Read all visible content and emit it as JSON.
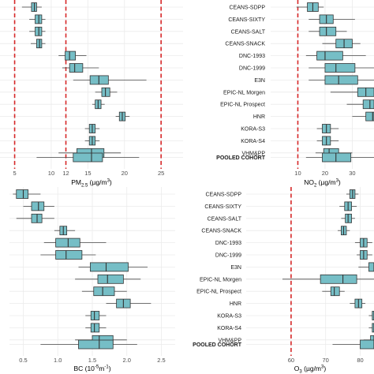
{
  "chart_data": [
    {
      "type": "box",
      "panel": "top-left",
      "xlabel": "PM2.5 (µg/m³)",
      "xlabel_main": "PM",
      "xlabel_sub": "2.5",
      "xlabel_unit": " (µg/m",
      "xlabel_sup": "3",
      "xlabel_end": ")",
      "xlim": [
        3,
        28
      ],
      "xticks": [
        5,
        10,
        12,
        15,
        20,
        25
      ],
      "reference_lines": [
        5,
        12,
        25
      ],
      "reference_color": "#d62728",
      "categories": [
        "CEANS-SDPP",
        "CEANS-SIXTY",
        "CEANS-SALT",
        "CEANS-SNACK",
        "DNC-1993",
        "DNC-1999",
        "E3N",
        "EPIC-NL Morgen",
        "EPIC-NL Prospect",
        "HNR",
        "KORA-S3",
        "KORA-S4",
        "VHM&PP",
        "POOLED COHORT"
      ],
      "boxes": [
        {
          "min": 6.0,
          "q1": 7.3,
          "median": 7.7,
          "q3": 8.0,
          "max": 8.7
        },
        {
          "min": 7.0,
          "q1": 7.8,
          "median": 8.3,
          "q3": 8.7,
          "max": 9.2
        },
        {
          "min": 7.0,
          "q1": 7.8,
          "median": 8.3,
          "q3": 8.7,
          "max": 9.2
        },
        {
          "min": 7.2,
          "q1": 8.0,
          "median": 8.4,
          "q3": 8.7,
          "max": 9.2
        },
        {
          "min": 11.0,
          "q1": 11.9,
          "median": 12.5,
          "q3": 13.3,
          "max": 14.8
        },
        {
          "min": 11.5,
          "q1": 12.5,
          "median": 13.2,
          "q3": 14.3,
          "max": 16.5
        },
        {
          "min": 13.0,
          "q1": 15.3,
          "median": 16.5,
          "q3": 17.8,
          "max": 23.0
        },
        {
          "min": 16.0,
          "q1": 16.9,
          "median": 17.4,
          "q3": 18.0,
          "max": 19.0
        },
        {
          "min": 15.6,
          "q1": 16.0,
          "median": 16.4,
          "q3": 16.8,
          "max": 17.3
        },
        {
          "min": 18.8,
          "q1": 19.3,
          "median": 19.7,
          "q3": 20.1,
          "max": 20.7
        },
        {
          "min": 14.6,
          "q1": 15.2,
          "median": 15.6,
          "q3": 16.0,
          "max": 16.6
        },
        {
          "min": 14.6,
          "q1": 15.2,
          "median": 15.6,
          "q3": 16.0,
          "max": 16.6
        },
        {
          "min": 11.0,
          "q1": 13.5,
          "median": 15.5,
          "q3": 17.2,
          "max": 19.5
        },
        {
          "min": 8.0,
          "q1": 13.0,
          "median": 15.5,
          "q3": 17.0,
          "max": 22.0
        }
      ]
    },
    {
      "type": "box",
      "panel": "top-right",
      "xlabel": "NO2 (µg/m³)",
      "xlabel_main": "NO",
      "xlabel_sub": "2",
      "xlabel_unit": " (µg/m",
      "xlabel_sup": "3",
      "xlabel_end": ")",
      "xlim": [
        0,
        38
      ],
      "xticks": [
        10,
        20,
        30
      ],
      "reference_lines": [
        10
      ],
      "reference_color": "#d62728",
      "categories": [
        "CEANS-SDPP",
        "CEANS-SIXTY",
        "CEANS-SALT",
        "CEANS-SNACK",
        "DNC-1993",
        "DNC-1999",
        "E3N",
        "EPIC-NL Morgen",
        "EPIC-NL Prospect",
        "HNR",
        "KORA-S3",
        "KORA-S4",
        "VHM&PP",
        "POOLED COHORT"
      ],
      "boxes": [
        {
          "min": 9.5,
          "q1": 13.5,
          "median": 15.5,
          "q3": 17.5,
          "max": 19.5
        },
        {
          "min": 14.0,
          "q1": 18.0,
          "median": 20.5,
          "q3": 23.0,
          "max": 31.0
        },
        {
          "min": 14.0,
          "q1": 18.0,
          "median": 20.5,
          "q3": 24.0,
          "max": 28.0
        },
        {
          "min": 19.0,
          "q1": 24.0,
          "median": 27.0,
          "q3": 30.0,
          "max": 33.0
        },
        {
          "min": 13.0,
          "q1": 17.0,
          "median": 20.0,
          "q3": 26.5,
          "max": 35.0
        },
        {
          "min": 14.0,
          "q1": 20.0,
          "median": 24.0,
          "q3": 31.0,
          "max": 38.0
        },
        {
          "min": 14.0,
          "q1": 20.0,
          "median": 25.0,
          "q3": 32.0,
          "max": 38.0
        },
        {
          "min": 22.0,
          "q1": 32.0,
          "median": 35.0,
          "q3": 38.0,
          "max": 38.0
        },
        {
          "min": 28.0,
          "q1": 34.0,
          "median": 36.5,
          "q3": 38.0,
          "max": 38.0
        },
        {
          "min": 30.0,
          "q1": 35.0,
          "median": 37.5,
          "q3": 38.0,
          "max": 38.0
        },
        {
          "min": 17.0,
          "q1": 19.0,
          "median": 20.5,
          "q3": 22.0,
          "max": 25.0
        },
        {
          "min": 17.0,
          "q1": 19.0,
          "median": 20.5,
          "q3": 22.0,
          "max": 25.0
        },
        {
          "min": 16.5,
          "q1": 19.5,
          "median": 21.5,
          "q3": 25.0,
          "max": 30.0
        },
        {
          "min": 13.0,
          "q1": 19.0,
          "median": 24.0,
          "q3": 29.5,
          "max": 38.0
        }
      ]
    },
    {
      "type": "box",
      "panel": "bottom-left",
      "xlabel": "BC (10⁻⁵m⁻¹)",
      "xlabel_main": "BC (10",
      "xlabel_sup": "-5",
      "xlabel_unit": "m",
      "xlabel_sup2": "-1",
      "xlabel_end": ")",
      "xlim": [
        0.3,
        2.7
      ],
      "xticks": [
        0.5,
        1.0,
        1.5,
        2.0,
        2.5
      ],
      "xtick_labels": [
        "0.5",
        "1.0",
        "1.5",
        "2.0",
        "2.5"
      ],
      "reference_lines": [],
      "categories": [
        "CEANS-SDPP",
        "CEANS-SIXTY",
        "CEANS-SALT",
        "CEANS-SNACK",
        "DNC-1993",
        "DNC-1999",
        "E3N",
        "EPIC-NL Morgen",
        "EPIC-NL Prospect",
        "HNR",
        "KORA-S3",
        "KORA-S4",
        "VHM&PP",
        "POOLED COHORT"
      ],
      "boxes": [
        {
          "min": 0.35,
          "q1": 0.4,
          "median": 0.5,
          "q3": 0.57,
          "max": 0.75
        },
        {
          "min": 0.5,
          "q1": 0.62,
          "median": 0.72,
          "q3": 0.8,
          "max": 0.95
        },
        {
          "min": 0.4,
          "q1": 0.62,
          "median": 0.7,
          "q3": 0.77,
          "max": 0.95
        },
        {
          "min": 0.95,
          "q1": 1.03,
          "median": 1.08,
          "q3": 1.13,
          "max": 1.25
        },
        {
          "min": 0.8,
          "q1": 0.97,
          "median": 1.15,
          "q3": 1.32,
          "max": 1.7
        },
        {
          "min": 0.75,
          "q1": 0.97,
          "median": 1.12,
          "q3": 1.35,
          "max": 1.55
        },
        {
          "min": 1.3,
          "q1": 1.47,
          "median": 1.7,
          "q3": 2.02,
          "max": 2.3
        },
        {
          "min": 1.25,
          "q1": 1.58,
          "median": 1.72,
          "q3": 1.95,
          "max": 2.2
        },
        {
          "min": 1.35,
          "q1": 1.52,
          "median": 1.65,
          "q3": 1.82,
          "max": 2.0
        },
        {
          "min": 1.7,
          "q1": 1.85,
          "median": 1.95,
          "q3": 2.05,
          "max": 2.35
        },
        {
          "min": 1.4,
          "q1": 1.48,
          "median": 1.53,
          "q3": 1.6,
          "max": 1.7
        },
        {
          "min": 1.4,
          "q1": 1.48,
          "median": 1.53,
          "q3": 1.6,
          "max": 1.7
        },
        {
          "min": 1.25,
          "q1": 1.5,
          "median": 1.6,
          "q3": 1.8,
          "max": 2.0
        },
        {
          "min": 0.75,
          "q1": 1.3,
          "median": 1.6,
          "q3": 1.8,
          "max": 2.15
        }
      ]
    },
    {
      "type": "box",
      "panel": "bottom-right",
      "xlabel": "O3 (µg/m³)",
      "xlabel_main": "O",
      "xlabel_sub": "3",
      "xlabel_unit": " (µg/m",
      "xlabel_sup": "3",
      "xlabel_end": ")",
      "xlim": [
        47,
        84
      ],
      "xticks": [
        60,
        70,
        80
      ],
      "reference_lines": [
        60
      ],
      "reference_color": "#d62728",
      "categories": [
        "CEANS-SDPP",
        "CEANS-SIXTY",
        "CEANS-SALT",
        "CEANS-SNACK",
        "DNC-1993",
        "DNC-1999",
        "E3N",
        "EPIC-NL Morgen",
        "EPIC-NL Prospect",
        "HNR",
        "KORA-S3",
        "KORA-S4",
        "VHM&PP",
        "POOLED COHORT"
      ],
      "boxes": [
        {
          "min": 76.0,
          "q1": 77.0,
          "median": 77.8,
          "q3": 78.5,
          "max": 79.5
        },
        {
          "min": 74.0,
          "q1": 75.5,
          "median": 76.5,
          "q3": 77.5,
          "max": 79.0
        },
        {
          "min": 74.5,
          "q1": 75.7,
          "median": 76.5,
          "q3": 77.5,
          "max": 78.5
        },
        {
          "min": 73.5,
          "q1": 74.5,
          "median": 75.2,
          "q3": 76.0,
          "max": 77.0
        },
        {
          "min": 78.5,
          "q1": 80.0,
          "median": 81.0,
          "q3": 82.0,
          "max": 83.5
        },
        {
          "min": 79.0,
          "q1": 80.0,
          "median": 81.0,
          "q3": 82.0,
          "max": 83.5
        },
        {
          "min": 79.5,
          "q1": 82.5,
          "median": 84.0,
          "q3": 84.0,
          "max": 84.0
        },
        {
          "min": 57.5,
          "q1": 68.5,
          "median": 75.0,
          "q3": 79.0,
          "max": 84.0
        },
        {
          "min": 69.0,
          "q1": 71.5,
          "median": 72.5,
          "q3": 74.0,
          "max": 75.5
        },
        {
          "min": 77.0,
          "q1": 78.5,
          "median": 79.5,
          "q3": 80.5,
          "max": 81.5
        },
        {
          "min": 82.5,
          "q1": 83.5,
          "median": 84.0,
          "q3": 84.0,
          "max": 84.0
        },
        {
          "min": 82.5,
          "q1": 83.5,
          "median": 84.0,
          "q3": 84.0,
          "max": 84.0
        },
        {
          "min": 81.0,
          "q1": 83.0,
          "median": 84.0,
          "q3": 84.0,
          "max": 84.0
        },
        {
          "min": 72.0,
          "q1": 80.0,
          "median": 84.0,
          "q3": 84.0,
          "max": 84.0
        }
      ]
    }
  ],
  "style": {
    "box_fill": "#76bec6",
    "box_stroke": "#333333",
    "whisker": "#444444",
    "grid": "#ebebeb",
    "reference": "#d62728"
  }
}
